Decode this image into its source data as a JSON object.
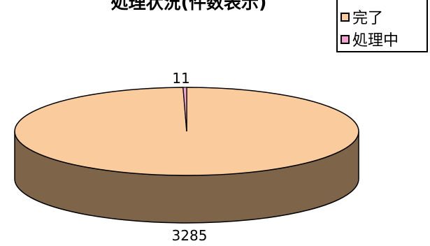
{
  "chart_data": {
    "type": "pie",
    "title": "処理状況(件数表示)",
    "slices": [
      {
        "label": "完了",
        "value": 3285,
        "display": "3285",
        "color": "#FACB9D"
      },
      {
        "label": "処理中",
        "value": 11,
        "display": "11",
        "color": "#F5A3D0"
      }
    ],
    "legend_position": "top-right",
    "colors": {
      "side": "#7E6549",
      "outline": "#000000"
    }
  }
}
